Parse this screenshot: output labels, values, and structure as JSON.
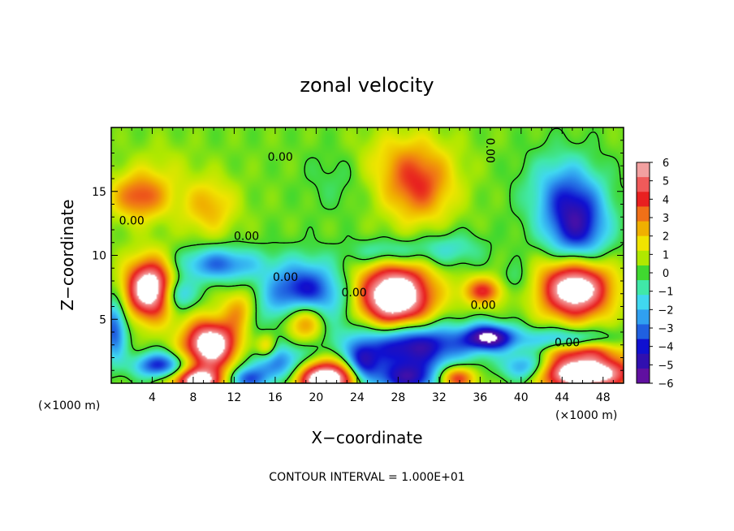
{
  "chart_data": {
    "type": "heatmap",
    "title": "zonal velocity",
    "xlabel": "X−coordinate",
    "ylabel": "Z−coordinate",
    "x_unit_left": "(×1000 m)",
    "x_unit_right": "(×1000 m)",
    "xlim": [
      0,
      50
    ],
    "ylim": [
      0,
      20
    ],
    "xticks": [
      4,
      8,
      12,
      16,
      20,
      24,
      28,
      32,
      36,
      40,
      44,
      48
    ],
    "yticks": [
      5,
      10,
      15
    ],
    "contour_labels": [
      {
        "text": "0.00",
        "x": 16.5,
        "y": 17.4
      },
      {
        "text": "0.00",
        "x": 2.0,
        "y": 12.4
      },
      {
        "text": "0.00",
        "x": 13.2,
        "y": 11.2
      },
      {
        "text": "0.00",
        "x": 17.0,
        "y": 8.0
      },
      {
        "text": "0.00",
        "x": 23.7,
        "y": 6.8
      },
      {
        "text": "0.00",
        "x": 36.3,
        "y": 5.8
      },
      {
        "text": "0.00",
        "x": 44.5,
        "y": 2.9
      },
      {
        "text": "0.00",
        "x": 36.6,
        "y": 18.2
      }
    ],
    "footer": "CONTOUR INTERVAL = 1.000E+01",
    "colorbar": {
      "min": -6,
      "max": 6,
      "ticks": [
        "6",
        "5",
        "4",
        "3",
        "2",
        "1",
        "0",
        "−1",
        "−2",
        "−3",
        "−4",
        "−5",
        "−6"
      ],
      "colors": [
        "#f2a0a0",
        "#f05a5a",
        "#e82020",
        "#f07018",
        "#f0b000",
        "#f0e400",
        "#b0e800",
        "#40d830",
        "#40e8a8",
        "#40d8f0",
        "#30a0f0",
        "#2060e0",
        "#1010d0",
        "#3010b0",
        "#6010a0"
      ]
    },
    "blobs": [
      {
        "x": 2.8,
        "y": 14.6,
        "rx": 2.8,
        "ry": 1.8,
        "v": 3.5
      },
      {
        "x": 9.5,
        "y": 13.8,
        "rx": 2.6,
        "ry": 2.2,
        "v": 2.2
      },
      {
        "x": 10.5,
        "y": 9.3,
        "rx": 4.0,
        "ry": 1.3,
        "v": -3.6
      },
      {
        "x": 6.5,
        "y": 7.0,
        "rx": 1.6,
        "ry": 1.3,
        "v": -3.5
      },
      {
        "x": 3.8,
        "y": 7.4,
        "rx": 2.4,
        "ry": 2.3,
        "v": 7.5
      },
      {
        "x": 9.7,
        "y": 3.0,
        "rx": 2.6,
        "ry": 1.9,
        "v": 7.5
      },
      {
        "x": 0.3,
        "y": 4.2,
        "rx": 1.2,
        "ry": 2.4,
        "v": -4.0
      },
      {
        "x": 4.7,
        "y": 1.4,
        "rx": 2.5,
        "ry": 1.0,
        "v": -4.6
      },
      {
        "x": 12.5,
        "y": 5.8,
        "rx": 1.6,
        "ry": 1.6,
        "v": 2.4
      },
      {
        "x": 18.8,
        "y": 6.2,
        "rx": 3.6,
        "ry": 2.8,
        "v": -7.5
      },
      {
        "x": 18.8,
        "y": 5.0,
        "rx": 2.5,
        "ry": 1.9,
        "v": 8.0
      },
      {
        "x": 16.5,
        "y": 1.4,
        "rx": 3.0,
        "ry": 1.6,
        "v": -3.8
      },
      {
        "x": 20.8,
        "y": 0.4,
        "rx": 3.2,
        "ry": 1.4,
        "v": 8.0
      },
      {
        "x": 15.2,
        "y": 2.8,
        "rx": 1.0,
        "ry": 1.0,
        "v": 3.0
      },
      {
        "x": 27.7,
        "y": 6.8,
        "rx": 3.6,
        "ry": 2.6,
        "v": 8.0
      },
      {
        "x": 29.3,
        "y": 3.0,
        "rx": 5.5,
        "ry": 1.7,
        "v": -6.0
      },
      {
        "x": 29.0,
        "y": 0.4,
        "rx": 4.0,
        "ry": 1.3,
        "v": -5.0
      },
      {
        "x": 36.3,
        "y": 7.2,
        "rx": 2.0,
        "ry": 1.1,
        "v": 3.8
      },
      {
        "x": 36.9,
        "y": 3.6,
        "rx": 2.4,
        "ry": 1.0,
        "v": -6.0
      },
      {
        "x": 30.0,
        "y": 15.2,
        "rx": 3.3,
        "ry": 2.7,
        "v": 3.2
      },
      {
        "x": 28.5,
        "y": 17.5,
        "rx": 4.5,
        "ry": 2.5,
        "v": 1.5
      },
      {
        "x": 27.0,
        "y": 10.2,
        "rx": 3.5,
        "ry": 1.1,
        "v": -2.3
      },
      {
        "x": 33.0,
        "y": 10.5,
        "rx": 3.3,
        "ry": 1.3,
        "v": -1.7
      },
      {
        "x": 45.5,
        "y": 12.0,
        "rx": 3.0,
        "ry": 3.3,
        "v": -4.8
      },
      {
        "x": 44.0,
        "y": 15.0,
        "rx": 3.5,
        "ry": 3.0,
        "v": -2.5
      },
      {
        "x": 45.3,
        "y": 7.5,
        "rx": 3.4,
        "ry": 2.4,
        "v": 7.8
      },
      {
        "x": 44.0,
        "y": 3.2,
        "rx": 4.5,
        "ry": 1.1,
        "v": -3.5
      },
      {
        "x": 46.0,
        "y": 0.8,
        "rx": 4.8,
        "ry": 1.4,
        "v": 8.0
      },
      {
        "x": 45.5,
        "y": 2.6,
        "rx": 4.0,
        "ry": 0.8,
        "v": 3.8
      },
      {
        "x": 40.5,
        "y": 1.2,
        "rx": 2.4,
        "ry": 1.2,
        "v": -4.2
      },
      {
        "x": 8.5,
        "y": 0.2,
        "rx": 2.6,
        "ry": 1.0,
        "v": 6.5
      },
      {
        "x": 13.0,
        "y": 0.3,
        "rx": 2.0,
        "ry": 0.9,
        "v": -3.5
      },
      {
        "x": 24.5,
        "y": 1.6,
        "rx": 1.5,
        "ry": 1.4,
        "v": -4.0
      },
      {
        "x": 33.5,
        "y": 0.4,
        "rx": 2.0,
        "ry": 1.0,
        "v": 5.0
      },
      {
        "x": 39.5,
        "y": 8.0,
        "rx": 1.5,
        "ry": 1.4,
        "v": -1.2
      },
      {
        "x": 5.0,
        "y": 17.0,
        "rx": 3.0,
        "ry": 2.0,
        "v": 0.6
      },
      {
        "x": 22.0,
        "y": 16.0,
        "rx": 3.0,
        "ry": 2.5,
        "v": -0.7
      }
    ],
    "base_value": 0.35
  }
}
